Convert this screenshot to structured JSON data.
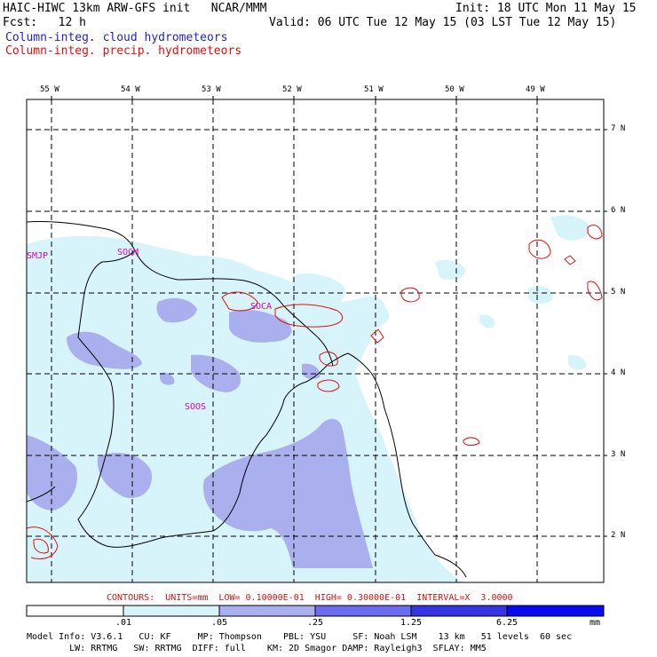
{
  "header": {
    "title_left": "HAIC-HIWC 13km ARW-GFS init   NCAR/MMM",
    "init": "Init: 18 UTC Mon 11 May 15",
    "fcst_label": "Fcst:   12 h",
    "valid": "Valid: 06 UTC Tue 12 May 15 (03 LST Tue 12 May 15)",
    "legend_cloud": "Column-integ. cloud hydrometeors",
    "legend_precip": "Column-integ. precip. hydrometeors"
  },
  "map": {
    "lon_labels": [
      "55 W",
      "54 W",
      "53 W",
      "52 W",
      "51 W",
      "50 W",
      "49 W"
    ],
    "lat_labels": [
      "7 N",
      "6 N",
      "5 N",
      "4 N",
      "3 N",
      "2 N"
    ],
    "stations": [
      "SMJP",
      "SOCM",
      "SOCA",
      "SOOS"
    ]
  },
  "contours": "CONTOURS:  UNITS=mm  LOW= 0.10000E-01  HIGH= 0.30000E-01  INTERVAL=X  3.0000",
  "colorbar": {
    "labels": [
      ".01",
      ".05",
      ".25",
      "1.25",
      "6.25",
      "mm"
    ],
    "colors": [
      "#ffffff",
      "#d8f4fb",
      "#aab0ee",
      "#6c6cf0",
      "#3434e4",
      "#0a0af0"
    ]
  },
  "model_info": {
    "line1": "Model Info: V3.6.1   CU: KF     MP: Thompson    PBL: YSU     SF: Noah LSM    13 km   51 levels  60 sec",
    "line2": "        LW: RRTMG   SW: RRTMG  DIFF: full    KM: 2D Smagor DAMP: Rayleigh3  SFLAY: MM5"
  }
}
